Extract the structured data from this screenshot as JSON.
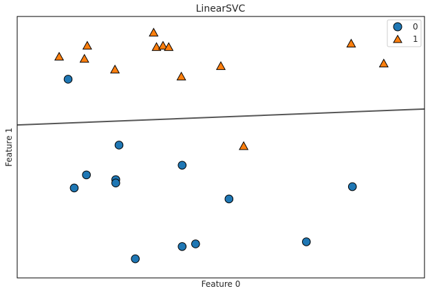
{
  "chart_data": {
    "type": "scatter",
    "title": "LinearSVC",
    "xlabel": "Feature 0",
    "ylabel": "Feature 1",
    "xlim": [
      0,
      100
    ],
    "ylim": [
      0,
      100
    ],
    "ticks": "none",
    "grid": false,
    "legend_position": "top-right",
    "series": [
      {
        "name": "0",
        "marker": "circle",
        "color": "#1f77b4",
        "edge_color": "#000000",
        "points": [
          {
            "x": 12.5,
            "y": 76.0
          },
          {
            "x": 25.0,
            "y": 50.8
          },
          {
            "x": 17.0,
            "y": 39.4
          },
          {
            "x": 14.0,
            "y": 34.4
          },
          {
            "x": 24.2,
            "y": 37.6
          },
          {
            "x": 24.2,
            "y": 36.3
          },
          {
            "x": 40.5,
            "y": 43.1
          },
          {
            "x": 52.0,
            "y": 30.2
          },
          {
            "x": 82.3,
            "y": 34.9
          },
          {
            "x": 43.8,
            "y": 13.0
          },
          {
            "x": 40.5,
            "y": 12.0
          },
          {
            "x": 29.0,
            "y": 7.3
          },
          {
            "x": 71.0,
            "y": 13.8
          }
        ]
      },
      {
        "name": "1",
        "marker": "triangle",
        "color": "#ff7f0e",
        "edge_color": "#000000",
        "points": [
          {
            "x": 33.5,
            "y": 93.8
          },
          {
            "x": 34.2,
            "y": 88.3
          },
          {
            "x": 35.8,
            "y": 88.8
          },
          {
            "x": 37.2,
            "y": 88.3
          },
          {
            "x": 17.2,
            "y": 88.8
          },
          {
            "x": 10.3,
            "y": 84.6
          },
          {
            "x": 16.5,
            "y": 83.8
          },
          {
            "x": 24.0,
            "y": 79.7
          },
          {
            "x": 40.3,
            "y": 77.0
          },
          {
            "x": 50.0,
            "y": 81.0
          },
          {
            "x": 82.0,
            "y": 89.6
          },
          {
            "x": 90.0,
            "y": 82.0
          },
          {
            "x": 55.6,
            "y": 50.4
          }
        ]
      }
    ],
    "decision_boundary": {
      "x": [
        0,
        100
      ],
      "y": [
        58.5,
        64.6
      ],
      "color": "#555555"
    }
  }
}
